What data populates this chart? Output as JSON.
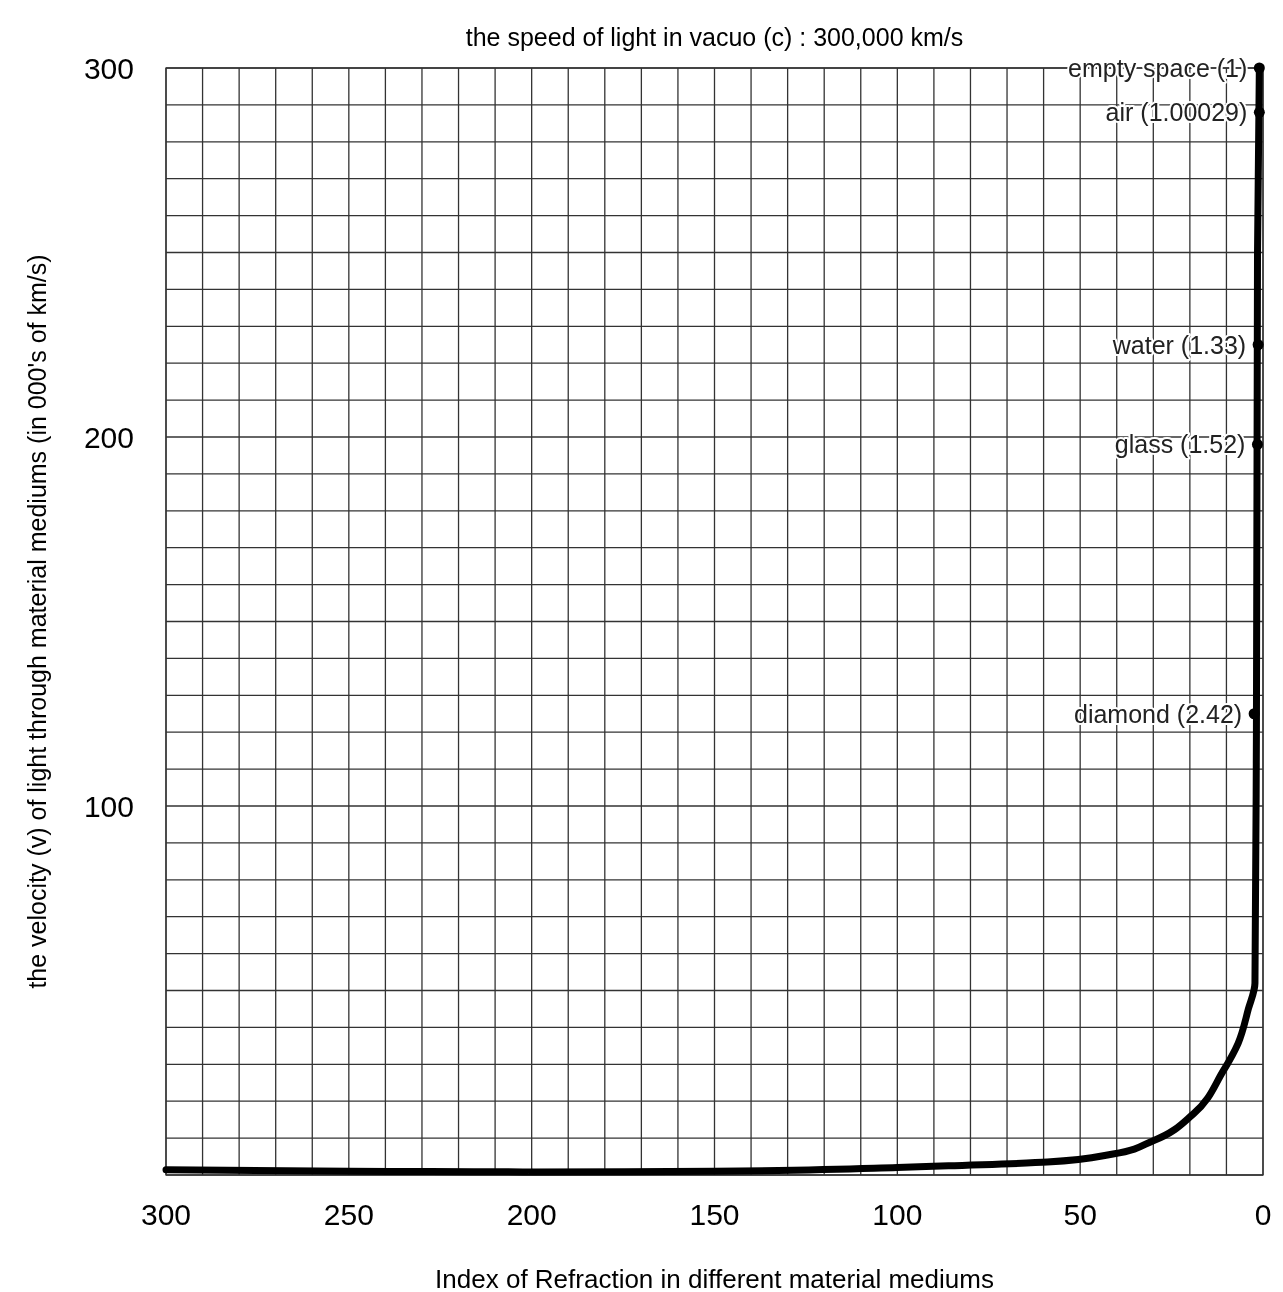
{
  "chart_data": {
    "type": "line",
    "title": "the speed of light in vacuo (c) : 300,000 km/s",
    "xlabel": "Index of Refraction in different material mediums",
    "ylabel": "the velocity (v) of light through material mediums (in 000's of km/s)",
    "xlim": [
      300,
      0
    ],
    "ylim": [
      0,
      300
    ],
    "xticks": [
      300,
      {
        "value": 290,
        "label": null
      },
      {
        "value": 280,
        "label": null
      },
      {
        "value": 270,
        "label": null
      },
      {
        "value": 260,
        "label": null
      },
      250,
      {
        "value": 240,
        "label": null
      },
      {
        "value": 230,
        "label": null
      },
      {
        "value": 220,
        "label": null
      },
      {
        "value": 210,
        "label": null
      },
      200,
      {
        "value": 190,
        "label": null
      },
      {
        "value": 180,
        "label": null
      },
      {
        "value": 170,
        "label": null
      },
      {
        "value": 160,
        "label": null
      },
      150,
      {
        "value": 140,
        "label": null
      },
      {
        "value": 130,
        "label": null
      },
      {
        "value": 120,
        "label": null
      },
      {
        "value": 110,
        "label": null
      },
      100,
      {
        "value": 90,
        "label": null
      },
      {
        "value": 80,
        "label": null
      },
      {
        "value": 70,
        "label": null
      },
      {
        "value": 60,
        "label": null
      },
      50,
      {
        "value": 40,
        "label": null
      },
      {
        "value": 30,
        "label": null
      },
      {
        "value": 20,
        "label": null
      },
      {
        "value": 10,
        "label": null
      },
      0
    ],
    "yticks": [
      {
        "value": 0,
        "label": null
      },
      {
        "value": 10,
        "label": null
      },
      {
        "value": 20,
        "label": null
      },
      {
        "value": 30,
        "label": null
      },
      {
        "value": 40,
        "label": null
      },
      {
        "value": 50,
        "label": null
      },
      {
        "value": 60,
        "label": null
      },
      {
        "value": 70,
        "label": null
      },
      {
        "value": 80,
        "label": null
      },
      {
        "value": 90,
        "label": null
      },
      100,
      {
        "value": 110,
        "label": null
      },
      {
        "value": 120,
        "label": null
      },
      {
        "value": 130,
        "label": null
      },
      {
        "value": 140,
        "label": null
      },
      {
        "value": 150,
        "label": null
      },
      {
        "value": 160,
        "label": null
      },
      {
        "value": 170,
        "label": null
      },
      {
        "value": 180,
        "label": null
      },
      {
        "value": 190,
        "label": null
      },
      200,
      {
        "value": 210,
        "label": null
      },
      {
        "value": 220,
        "label": null
      },
      {
        "value": 230,
        "label": null
      },
      {
        "value": 240,
        "label": null
      },
      {
        "value": 250,
        "label": null
      },
      {
        "value": 260,
        "label": null
      },
      {
        "value": 270,
        "label": null
      },
      {
        "value": 280,
        "label": null
      },
      {
        "value": 290,
        "label": null
      },
      300
    ],
    "grid": true,
    "series": [
      {
        "color": "#000000",
        "marker": "none",
        "line_style": "solid",
        "x": [
          300,
          250,
          200,
          150,
          100,
          86,
          59,
          41,
          30,
          19,
          11,
          6.8,
          4,
          2.2,
          1.8,
          1.5,
          1
        ],
        "values": [
          1.4,
          1,
          0.8,
          1,
          2,
          2.5,
          3.5,
          5.7,
          9.3,
          16.6,
          28,
          35.7,
          45,
          52,
          120,
          250,
          300
        ]
      },
      {
        "type": "scatter",
        "color": "#000000",
        "marker": "circle",
        "x": [
          1,
          1.00029,
          1.33,
          1.52,
          2.42
        ],
        "values": [
          300,
          288,
          225,
          198,
          125
        ]
      }
    ],
    "annotations": [
      {
        "text": "empty space (1)",
        "x": 1,
        "y": 300
      },
      {
        "text": "air (1.00029)",
        "x": 1.00029,
        "y": 288
      },
      {
        "text": "water (1.33)",
        "x": 1.33,
        "y": 225
      },
      {
        "text": "glass (1.52)",
        "x": 1.52,
        "y": 198
      },
      {
        "text": "diamond (2.42)",
        "x": 2.42,
        "y": 125
      }
    ]
  }
}
